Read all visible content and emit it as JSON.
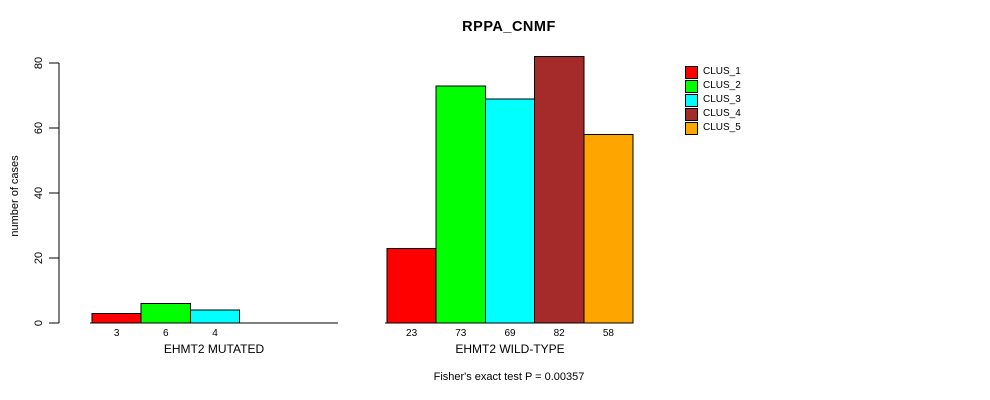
{
  "chart_data": {
    "type": "bar",
    "title": "RPPA_CNMF",
    "ylabel": "number of cases",
    "xlabel": "",
    "ylim": [
      0,
      80
    ],
    "yticks": [
      0,
      20,
      40,
      60,
      80
    ],
    "grid": false,
    "legend_position": "right",
    "bar_border_color": "#000000",
    "series": [
      {
        "name": "CLUS_1",
        "color": "#FF0000"
      },
      {
        "name": "CLUS_2",
        "color": "#00FF00"
      },
      {
        "name": "CLUS_3",
        "color": "#00FFFF"
      },
      {
        "name": "CLUS_4",
        "color": "#A52A2A"
      },
      {
        "name": "CLUS_5",
        "color": "#FFA500"
      }
    ],
    "groups": [
      {
        "label": "EHMT2 MUTATED",
        "values": [
          3,
          6,
          4,
          0,
          0
        ],
        "value_labels": [
          "3",
          "6",
          "4",
          "",
          ""
        ]
      },
      {
        "label": "EHMT2 WILD-TYPE",
        "values": [
          23,
          73,
          69,
          82,
          58
        ],
        "value_labels": [
          "23",
          "73",
          "69",
          "82",
          "58"
        ]
      }
    ],
    "caption": "Fisher's exact test P = 0.00357"
  }
}
